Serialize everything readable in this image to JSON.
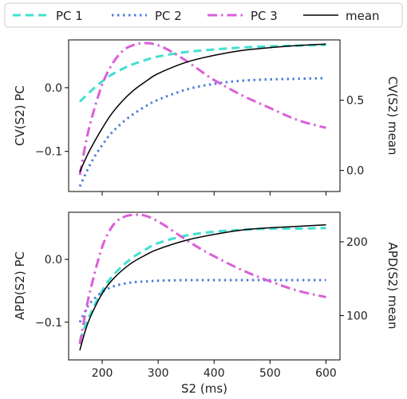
{
  "legend": {
    "placement": "top",
    "items": [
      {
        "label": "PC 1",
        "color": "#40E0D0",
        "dash": "dashed"
      },
      {
        "label": "PC 2",
        "color": "#4F7FDB",
        "dash": "dotted"
      },
      {
        "label": "PC 3",
        "color": "#DA5FD8",
        "dash": "dashdot"
      },
      {
        "label": "mean",
        "color": "#000000",
        "dash": "solid"
      }
    ]
  },
  "chart_data": [
    {
      "type": "line",
      "xlabel": "",
      "ylabel": "CV(S2) PC",
      "ylabel_right": "CV(S2) mean",
      "xlim": [
        140,
        625
      ],
      "xticks": [
        200,
        300,
        400,
        500,
        600
      ],
      "ylim": [
        -0.163,
        0.075
      ],
      "yticks": [
        0.0,
        -0.1
      ],
      "ytick_labels": [
        "0.0",
        "−0.1"
      ],
      "ylim_right": [
        -0.15,
        0.93
      ],
      "yticks_right": [
        0.5,
        0.0
      ],
      "ytick_labels_right": [
        "0.5",
        "0.0"
      ],
      "series": [
        {
          "name": "PC 1",
          "axis": "left",
          "x": [
            160,
            180,
            200,
            220,
            250,
            280,
            300,
            350,
            400,
            450,
            500,
            550,
            600
          ],
          "values": [
            -0.022,
            -0.005,
            0.01,
            0.022,
            0.035,
            0.044,
            0.049,
            0.056,
            0.06,
            0.063,
            0.065,
            0.066,
            0.067
          ]
        },
        {
          "name": "PC 2",
          "axis": "left",
          "x": [
            160,
            180,
            200,
            220,
            250,
            280,
            300,
            350,
            400,
            450,
            500,
            550,
            600
          ],
          "values": [
            -0.155,
            -0.118,
            -0.09,
            -0.068,
            -0.045,
            -0.028,
            -0.019,
            -0.003,
            0.006,
            0.011,
            0.013,
            0.014,
            0.015
          ]
        },
        {
          "name": "PC 3",
          "axis": "left",
          "x": [
            160,
            170,
            180,
            200,
            220,
            240,
            260,
            275,
            290,
            310,
            340,
            370,
            400,
            450,
            500,
            550,
            600
          ],
          "values": [
            -0.137,
            -0.09,
            -0.052,
            0.005,
            0.04,
            0.06,
            0.068,
            0.07,
            0.069,
            0.063,
            0.048,
            0.03,
            0.012,
            -0.012,
            -0.032,
            -0.051,
            -0.063
          ]
        },
        {
          "name": "mean",
          "axis": "right",
          "x": [
            160,
            170,
            180,
            200,
            220,
            250,
            280,
            300,
            350,
            400,
            450,
            500,
            550,
            600
          ],
          "values": [
            -0.01,
            0.08,
            0.16,
            0.3,
            0.42,
            0.55,
            0.64,
            0.69,
            0.77,
            0.82,
            0.855,
            0.875,
            0.89,
            0.9
          ]
        }
      ]
    },
    {
      "type": "line",
      "xlabel": "S2 (ms)",
      "ylabel": "APD(S2) PC",
      "ylabel_right": "APD(S2) mean",
      "xlim": [
        140,
        625
      ],
      "xticks": [
        200,
        300,
        400,
        500,
        600
      ],
      "xtick_labels": [
        "200",
        "300",
        "400",
        "500",
        "600"
      ],
      "ylim": [
        -0.16,
        0.075
      ],
      "yticks": [
        0.0,
        -0.1
      ],
      "ytick_labels": [
        "0.0",
        "−0.1"
      ],
      "ylim_right": [
        40,
        240
      ],
      "yticks_right": [
        200,
        100
      ],
      "ytick_labels_right": [
        "200",
        "100"
      ],
      "series": [
        {
          "name": "PC 1",
          "axis": "left",
          "x": [
            160,
            170,
            180,
            200,
            220,
            250,
            280,
            300,
            350,
            400,
            450,
            500,
            550,
            600
          ],
          "values": [
            -0.13,
            -0.105,
            -0.085,
            -0.05,
            -0.025,
            0.0,
            0.017,
            0.026,
            0.038,
            0.044,
            0.047,
            0.049,
            0.049,
            0.05
          ]
        },
        {
          "name": "PC 2",
          "axis": "left",
          "x": [
            160,
            170,
            180,
            200,
            220,
            250,
            280,
            300,
            350,
            400,
            450,
            500,
            550,
            600
          ],
          "values": [
            -0.1,
            -0.082,
            -0.068,
            -0.052,
            -0.043,
            -0.037,
            -0.035,
            -0.034,
            -0.033,
            -0.033,
            -0.033,
            -0.033,
            -0.033,
            -0.033
          ]
        },
        {
          "name": "PC 3",
          "axis": "left",
          "x": [
            160,
            170,
            180,
            200,
            220,
            240,
            260,
            275,
            290,
            310,
            340,
            370,
            400,
            450,
            500,
            550,
            600
          ],
          "values": [
            -0.135,
            -0.085,
            -0.045,
            0.02,
            0.055,
            0.068,
            0.071,
            0.07,
            0.065,
            0.055,
            0.037,
            0.02,
            0.005,
            -0.017,
            -0.035,
            -0.05,
            -0.06
          ]
        },
        {
          "name": "mean",
          "axis": "right",
          "x": [
            160,
            170,
            180,
            200,
            220,
            250,
            280,
            300,
            350,
            400,
            450,
            500,
            550,
            600
          ],
          "values": [
            53,
            80,
            100,
            130,
            150,
            170,
            183,
            190,
            202,
            210,
            216,
            219,
            221,
            223
          ]
        }
      ]
    }
  ]
}
